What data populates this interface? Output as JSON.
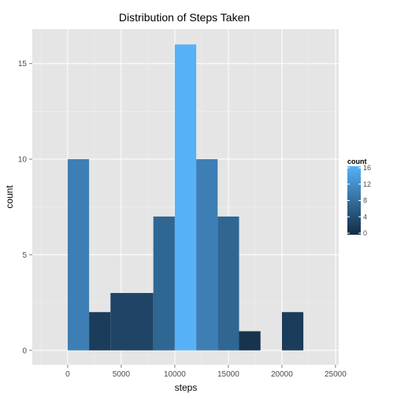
{
  "chart_data": {
    "type": "bar",
    "title": "Distribution of Steps Taken",
    "xlabel": "steps",
    "ylabel": "count",
    "bin_width": 2000,
    "bins": [
      {
        "x0": 0,
        "x1": 2000,
        "count": 10
      },
      {
        "x0": 2000,
        "x1": 4000,
        "count": 2
      },
      {
        "x0": 4000,
        "x1": 6000,
        "count": 3
      },
      {
        "x0": 6000,
        "x1": 8000,
        "count": 3
      },
      {
        "x0": 8000,
        "x1": 10000,
        "count": 7
      },
      {
        "x0": 10000,
        "x1": 12000,
        "count": 16
      },
      {
        "x0": 12000,
        "x1": 14000,
        "count": 10
      },
      {
        "x0": 14000,
        "x1": 16000,
        "count": 7
      },
      {
        "x0": 16000,
        "x1": 18000,
        "count": 1
      },
      {
        "x0": 18000,
        "x1": 20000,
        "count": 0
      },
      {
        "x0": 20000,
        "x1": 22000,
        "count": 2
      }
    ],
    "xlim": [
      -3300,
      25300
    ],
    "ylim": [
      -0.75,
      16.8
    ],
    "x_ticks": [
      0,
      5000,
      10000,
      15000,
      20000,
      25000
    ],
    "x_tick_labels": [
      "0",
      "5000",
      "10000",
      "15000",
      "20000",
      "25000"
    ],
    "y_ticks": [
      0,
      5,
      10,
      15
    ],
    "y_tick_labels": [
      "0",
      "5",
      "10",
      "15"
    ],
    "grid": true,
    "panel_background": "#e5e5e5",
    "fill_low_color": "#132b43",
    "fill_high_color": "#56b1f7",
    "legend": {
      "title": "count",
      "placement": "right",
      "ticks": [
        0,
        4,
        8,
        12,
        16
      ],
      "tick_labels": [
        "0",
        "4",
        "8",
        "12",
        "16"
      ]
    }
  }
}
